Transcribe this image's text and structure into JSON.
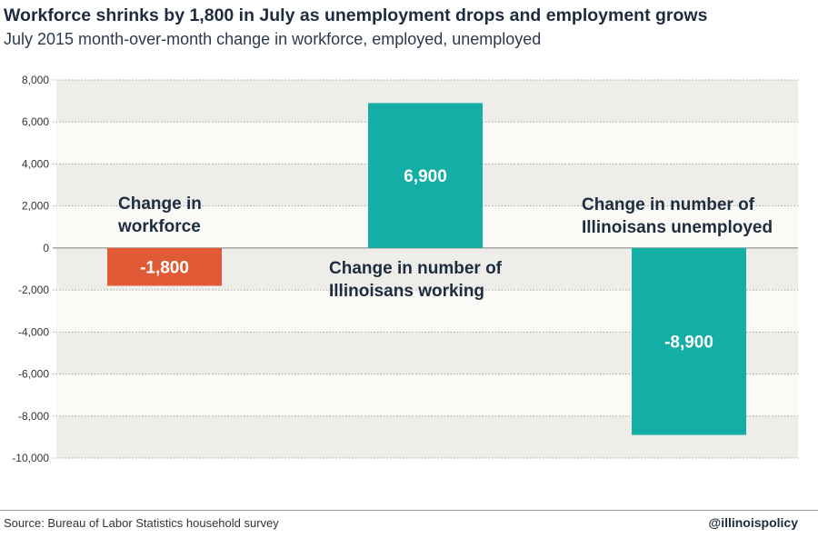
{
  "title": "Workforce shrinks by 1,800 in July as unemployment drops and employment grows",
  "subtitle": "July 2015 month-over-month change in workforce, employed, unemployed",
  "source": "Source: Bureau of Labor Statistics household survey",
  "brand": "@illinoispolicy",
  "chart_data": {
    "type": "bar",
    "categories": [
      [
        "Change in",
        "workforce"
      ],
      [
        "Change in number of",
        "Illinoisans working"
      ],
      [
        "Change in number of",
        "Illinoisans unemployed"
      ]
    ],
    "values": [
      -1800,
      6900,
      -8900
    ],
    "value_labels": [
      "-1,800",
      "6,900",
      "-8,900"
    ],
    "colors": [
      "#e05a35",
      "#13aea6",
      "#13aea6"
    ],
    "ylim": [
      -10000,
      8000
    ],
    "yticks": [
      8000,
      6000,
      4000,
      2000,
      0,
      -2000,
      -4000,
      -6000,
      -8000,
      -10000
    ],
    "ytick_labels": [
      "8,000",
      "6,000",
      "4,000",
      "2,000",
      "0",
      "-2,000",
      "-4,000",
      "-6,000",
      "-8,000",
      "-10,000"
    ],
    "grid": true
  }
}
